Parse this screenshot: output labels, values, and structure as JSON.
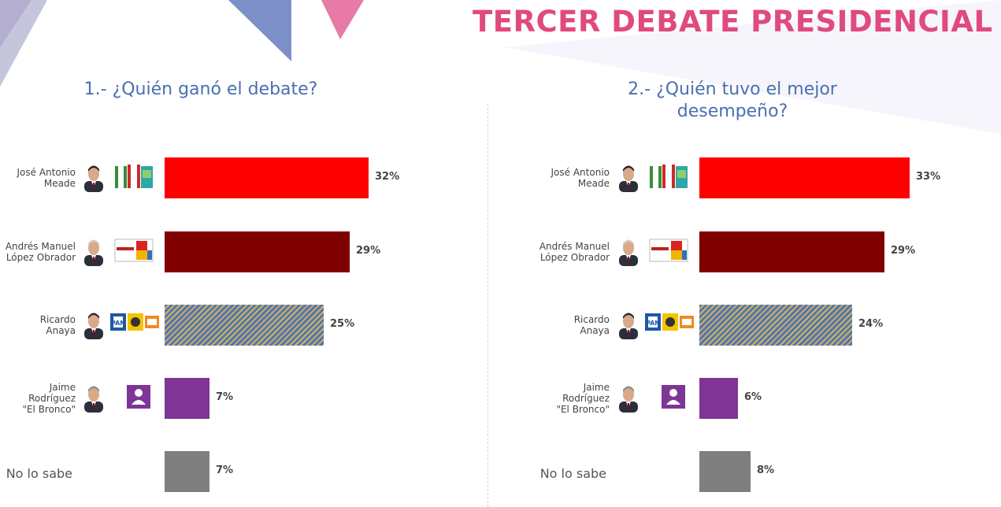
{
  "title": "TERCER DEBATE PRESIDENCIAL",
  "chart_data": [
    {
      "type": "bar",
      "title": "1.- ¿Quién ganó el debate?",
      "categories": [
        "José Antonio\nMeade",
        "Andrés Manuel\nLópez Obrador",
        "Ricardo\nAnaya",
        "Jaime\nRodríguez\n\"El Bronco\"",
        "No lo sabe"
      ],
      "values": [
        32,
        29,
        25,
        7,
        7
      ],
      "value_labels": [
        "32%",
        "29%",
        "25%",
        "7%",
        "7%"
      ],
      "colors": [
        "#ff0000",
        "#800000",
        "pattern-blue-yellow",
        "#7f3595",
        "#7f7f7f"
      ],
      "orientation": "horizontal",
      "xlim": [
        0,
        36
      ],
      "grid": false
    },
    {
      "type": "bar",
      "title": "2.- ¿Quién tuvo el mejor\ndesempeño?",
      "categories": [
        "José Antonio\nMeade",
        "Andrés Manuel\nLópez Obrador",
        "Ricardo\nAnaya",
        "Jaime\nRodríguez\n\"El Bronco\"",
        "No lo sabe"
      ],
      "values": [
        33,
        29,
        24,
        6,
        8
      ],
      "value_labels": [
        "33%",
        "29%",
        "24%",
        "6%",
        "8%"
      ],
      "colors": [
        "#ff0000",
        "#800000",
        "pattern-blue-yellow",
        "#7f3595",
        "#7f7f7f"
      ],
      "orientation": "horizontal",
      "xlim": [
        0,
        36
      ],
      "grid": false
    }
  ]
}
